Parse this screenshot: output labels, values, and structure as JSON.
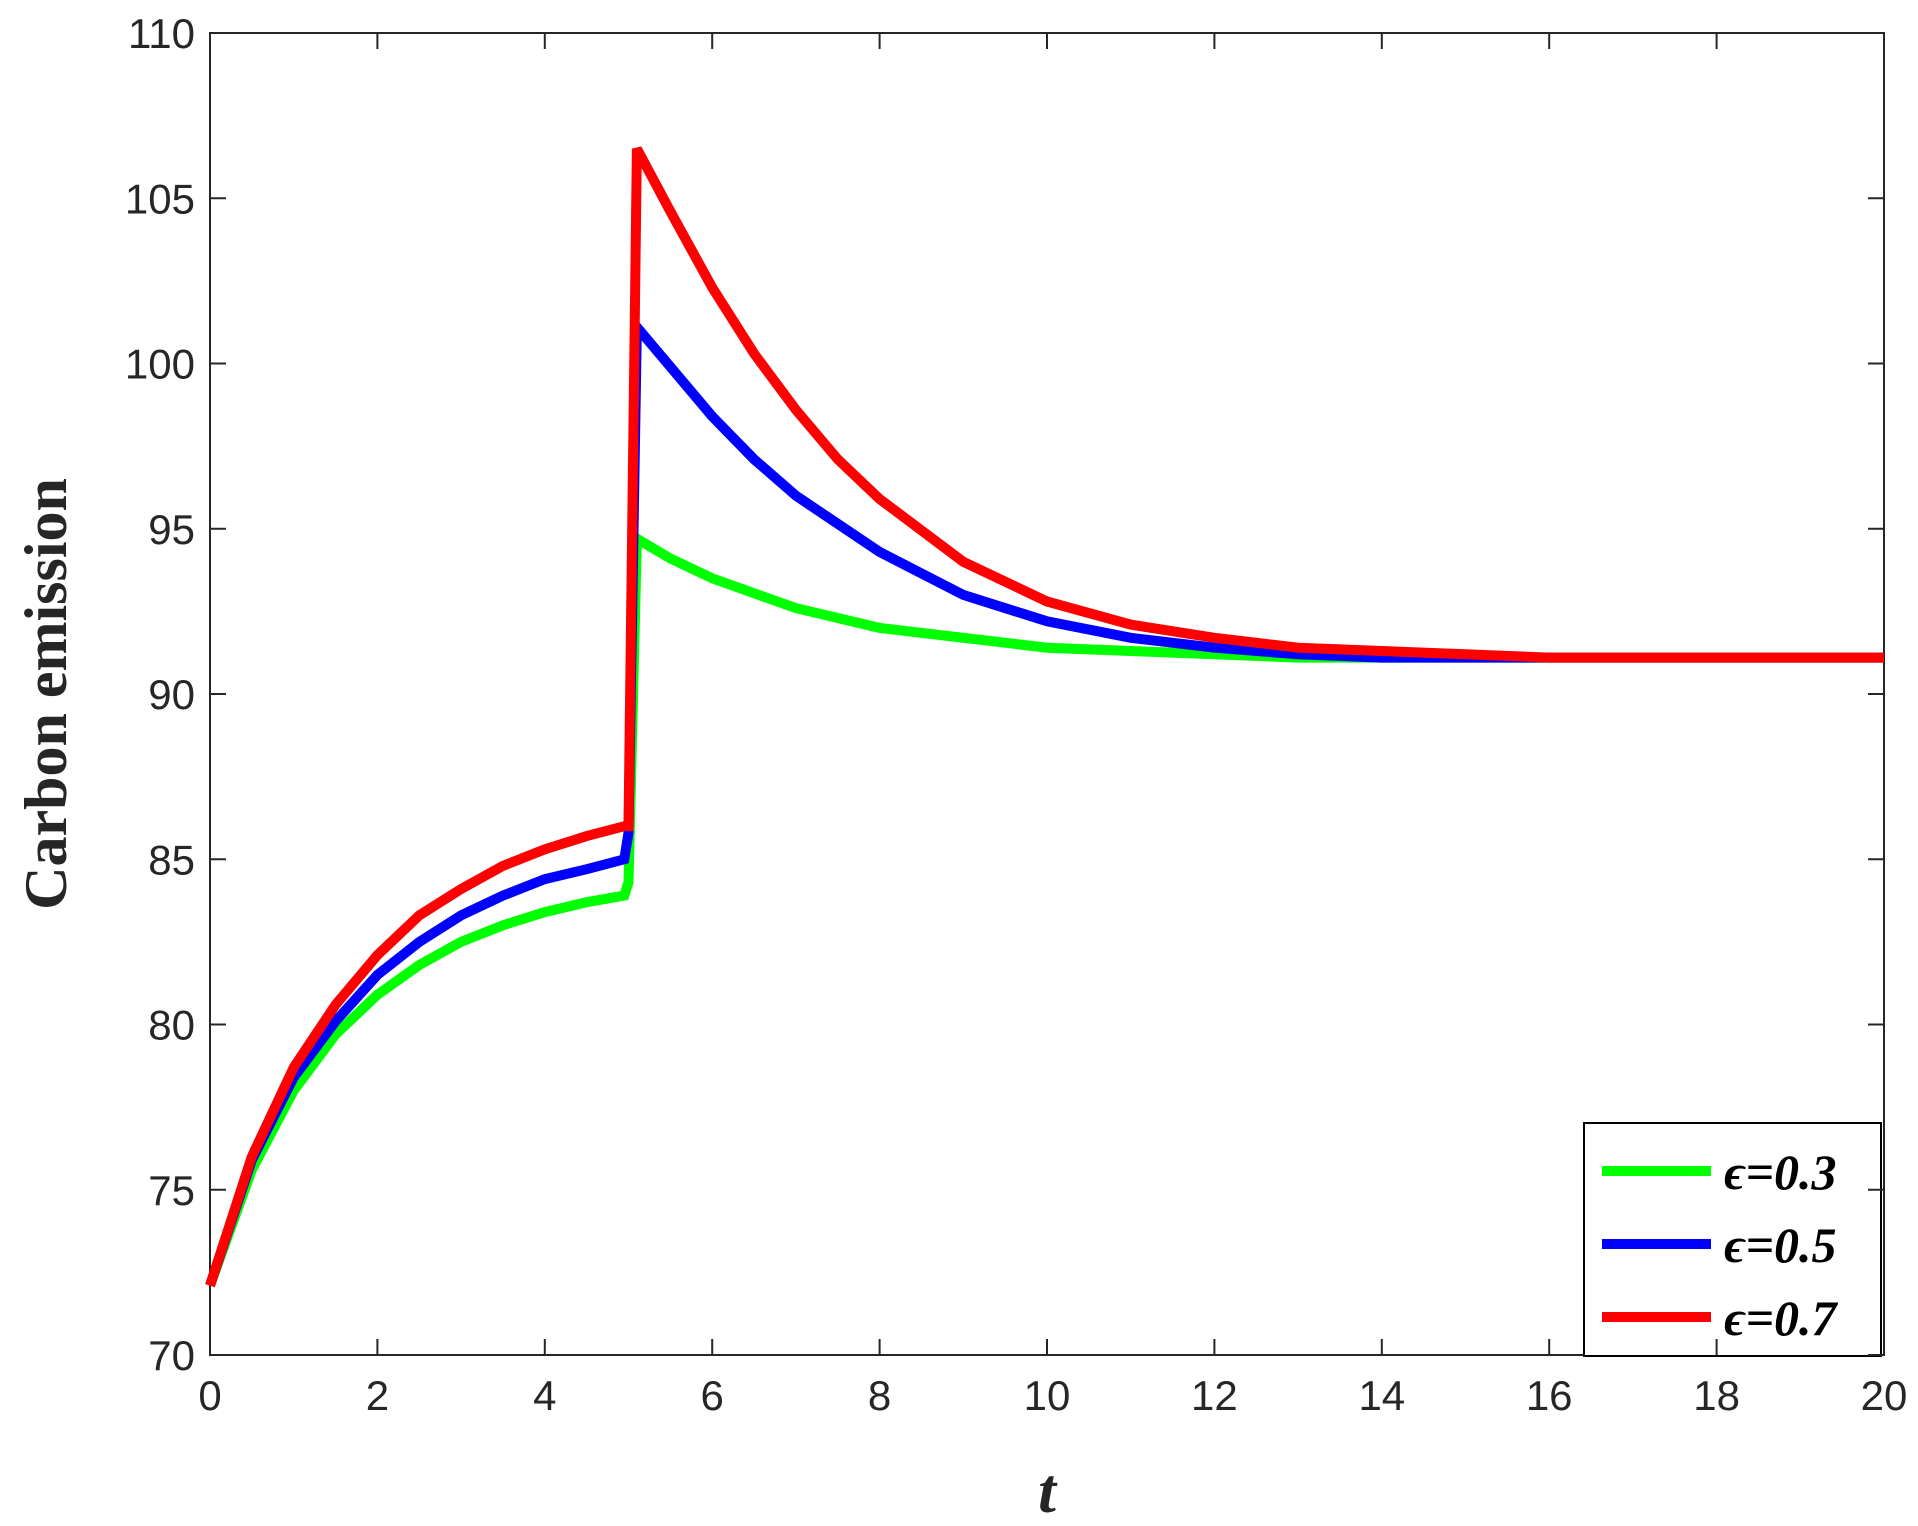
{
  "chart_data": {
    "type": "line",
    "xlabel": "t",
    "ylabel": "Carbon emission",
    "xlim": [
      0,
      20
    ],
    "ylim": [
      70,
      110
    ],
    "x_ticks": [
      "0",
      "2",
      "4",
      "6",
      "8",
      "10",
      "12",
      "14",
      "16",
      "18",
      "20"
    ],
    "y_ticks": [
      "70",
      "75",
      "80",
      "85",
      "90",
      "95",
      "100",
      "105",
      "110"
    ],
    "grid": false,
    "legend_position": "bottom-right",
    "series": [
      {
        "name": "ϵ=0.3",
        "color": "#00ff00",
        "x": [
          0,
          0.5,
          1,
          1.5,
          2,
          2.5,
          3,
          3.5,
          4,
          4.5,
          4.95,
          5.0,
          5.1,
          5.5,
          6,
          7,
          8,
          9,
          10,
          11,
          12,
          13,
          14,
          15,
          16,
          17,
          18,
          19,
          20
        ],
        "y": [
          72.1,
          75.6,
          78.0,
          79.7,
          80.9,
          81.8,
          82.5,
          83.0,
          83.4,
          83.7,
          83.9,
          84.3,
          94.7,
          94.1,
          93.5,
          92.6,
          92.0,
          91.7,
          91.4,
          91.3,
          91.2,
          91.1,
          91.1,
          91.1,
          91.1,
          91.1,
          91.1,
          91.1,
          91.1
        ]
      },
      {
        "name": "ϵ=0.5",
        "color": "#0000ff",
        "x": [
          0,
          0.5,
          1,
          1.5,
          2,
          2.5,
          3,
          3.5,
          4,
          4.5,
          4.95,
          5.0,
          5.1,
          5.5,
          6,
          6.5,
          7,
          8,
          9,
          10,
          11,
          12,
          13,
          14,
          15,
          16,
          17,
          18,
          19,
          20
        ],
        "y": [
          72.1,
          75.9,
          78.4,
          80.1,
          81.5,
          82.5,
          83.3,
          83.9,
          84.4,
          84.7,
          85.0,
          85.8,
          101.1,
          99.9,
          98.4,
          97.1,
          96.0,
          94.3,
          93.0,
          92.2,
          91.7,
          91.4,
          91.2,
          91.1,
          91.1,
          91.1,
          91.1,
          91.1,
          91.1,
          91.1
        ]
      },
      {
        "name": "ϵ=0.7",
        "color": "#ff0000",
        "x": [
          0,
          0.5,
          1,
          1.5,
          2,
          2.5,
          3,
          3.5,
          4,
          4.5,
          4.95,
          5.0,
          5.1,
          5.5,
          6,
          6.5,
          7,
          7.5,
          8,
          9,
          10,
          11,
          12,
          13,
          14,
          15,
          16,
          17,
          18,
          19,
          20
        ],
        "y": [
          72.1,
          76.0,
          78.7,
          80.6,
          82.1,
          83.3,
          84.1,
          84.8,
          85.3,
          85.7,
          86.0,
          86.0,
          106.5,
          104.6,
          102.3,
          100.3,
          98.6,
          97.1,
          95.9,
          94.0,
          92.8,
          92.1,
          91.7,
          91.4,
          91.3,
          91.2,
          91.1,
          91.1,
          91.1,
          91.1,
          91.1
        ]
      }
    ]
  }
}
